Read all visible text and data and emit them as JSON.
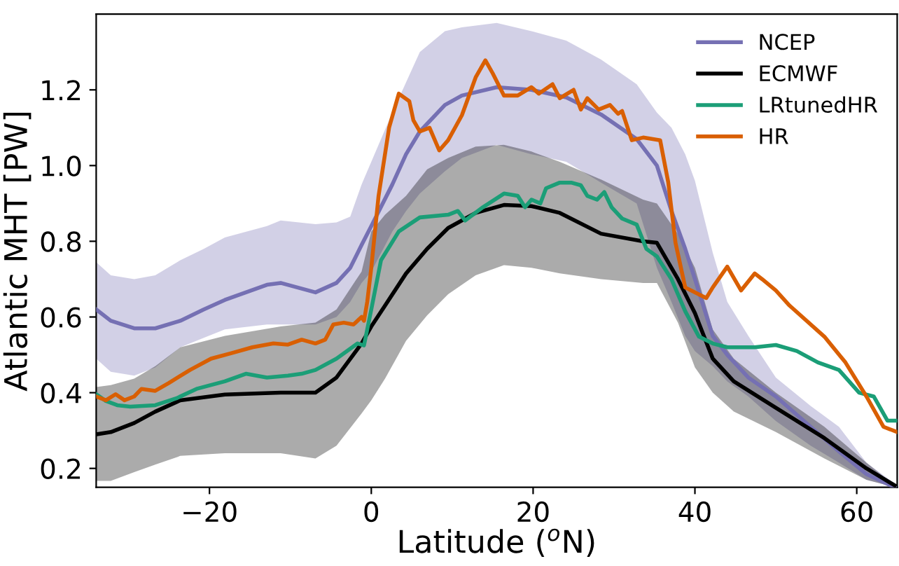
{
  "chart_data": {
    "type": "line",
    "xlabel": "Latitude ($^{o}$N)",
    "ylabel": "Atlantic MHT [PW]",
    "xlim": [
      -34,
      65
    ],
    "ylim": [
      0.15,
      1.4
    ],
    "xticks": [
      {
        "value": -20,
        "label": "−20"
      },
      0,
      20,
      40,
      60
    ],
    "yticks": [
      0.2,
      0.4,
      0.6,
      0.8,
      {
        "value": 1.0,
        "label": "1.0"
      },
      1.2
    ],
    "grid": false,
    "legend": "top right",
    "marker": "none",
    "line_style": "solid",
    "series": [
      {
        "name": "NCEP",
        "color": "#7570b3",
        "x": [
          -34,
          -32.2,
          -29.3,
          -26.7,
          -23.6,
          -20.7,
          -18.1,
          -12.9,
          -11.2,
          -6.9,
          -4.3,
          -2.6,
          -1.2,
          0,
          2.6,
          4.3,
          6,
          9.1,
          11.2,
          15.5,
          19.8,
          24.1,
          28.4,
          32.8,
          35.3,
          37.1,
          38.8,
          40,
          42.2,
          44,
          46.6,
          50,
          54.3,
          57.8,
          61.2,
          64.7
        ],
        "values": [
          0.62,
          0.59,
          0.57,
          0.57,
          0.59,
          0.62,
          0.645,
          0.685,
          0.69,
          0.665,
          0.69,
          0.73,
          0.79,
          0.84,
          0.95,
          1.03,
          1.09,
          1.16,
          1.185,
          1.207,
          1.2,
          1.18,
          1.135,
          1.07,
          1.0,
          0.88,
          0.78,
          0.7,
          0.55,
          0.5,
          0.44,
          0.39,
          0.31,
          0.245,
          0.185,
          0.15
        ],
        "upper": [
          0.745,
          0.71,
          0.7,
          0.71,
          0.75,
          0.78,
          0.81,
          0.84,
          0.855,
          0.845,
          0.85,
          0.865,
          0.95,
          1.01,
          1.14,
          1.22,
          1.3,
          1.355,
          1.365,
          1.377,
          1.355,
          1.33,
          1.28,
          1.215,
          1.14,
          1.1,
          1.03,
          0.96,
          0.77,
          0.64,
          0.55,
          0.44,
          0.365,
          0.31,
          0.215,
          0.16
        ],
        "lower": [
          0.49,
          0.455,
          0.445,
          0.467,
          0.52,
          0.545,
          0.567,
          0.58,
          0.58,
          0.58,
          0.6,
          0.64,
          0.69,
          0.72,
          0.826,
          0.88,
          0.926,
          0.985,
          1.02,
          1.055,
          1.03,
          1.01,
          0.955,
          0.9,
          0.73,
          0.64,
          0.55,
          0.51,
          0.47,
          0.43,
          0.39,
          0.325,
          0.26,
          0.215,
          0.17,
          0.15
        ]
      },
      {
        "name": "ECMWF",
        "color": "#000000",
        "x": [
          -34,
          -32.2,
          -29.3,
          -26.7,
          -23.6,
          -18.1,
          -11.2,
          -6.9,
          -4.3,
          -1.2,
          0,
          1.7,
          4.3,
          6.9,
          9.5,
          12.9,
          16.4,
          19.8,
          23.3,
          28.4,
          33.6,
          35.3,
          37.9,
          40,
          42.2,
          44.8,
          50,
          56,
          61.2,
          64.7
        ],
        "values": [
          0.29,
          0.296,
          0.32,
          0.35,
          0.38,
          0.395,
          0.4,
          0.4,
          0.44,
          0.53,
          0.575,
          0.63,
          0.715,
          0.78,
          0.835,
          0.875,
          0.896,
          0.893,
          0.875,
          0.82,
          0.8,
          0.796,
          0.7,
          0.61,
          0.49,
          0.43,
          0.36,
          0.28,
          0.2,
          0.155
        ],
        "upper": [
          0.415,
          0.42,
          0.437,
          0.47,
          0.52,
          0.55,
          0.575,
          0.585,
          0.62,
          0.72,
          0.826,
          0.87,
          0.92,
          0.99,
          1.02,
          1.05,
          1.055,
          1.037,
          1.01,
          0.963,
          0.91,
          0.9,
          0.82,
          0.73,
          0.567,
          0.49,
          0.4,
          0.31,
          0.215,
          0.155
        ],
        "lower": [
          0.167,
          0.167,
          0.19,
          0.21,
          0.233,
          0.24,
          0.24,
          0.226,
          0.26,
          0.345,
          0.38,
          0.437,
          0.537,
          0.604,
          0.66,
          0.71,
          0.737,
          0.73,
          0.715,
          0.7,
          0.69,
          0.69,
          0.585,
          0.467,
          0.4,
          0.35,
          0.296,
          0.226,
          0.17,
          0.15
        ]
      },
      {
        "name": "LRtunedHR",
        "color": "#1b9e77",
        "x": [
          -34,
          -32.8,
          -31.4,
          -29.8,
          -26.7,
          -24.1,
          -21.6,
          -18.1,
          -15.5,
          -12.9,
          -10.3,
          -8.6,
          -6.9,
          -4.3,
          -1.7,
          -0.9,
          0,
          1.2,
          3.4,
          6,
          9.5,
          10.7,
          11.6,
          13.8,
          16.4,
          18.1,
          19,
          19.8,
          20.9,
          21.6,
          23.3,
          24.7,
          25.9,
          26.7,
          27.9,
          28.8,
          29.7,
          31,
          32.8,
          34,
          35.3,
          37.1,
          38.8,
          40.5,
          42.2,
          44,
          47.4,
          50,
          52.6,
          55.2,
          57.8,
          60.3,
          62.1,
          63.8,
          65
        ],
        "values": [
          0.396,
          0.378,
          0.367,
          0.363,
          0.367,
          0.385,
          0.41,
          0.43,
          0.45,
          0.44,
          0.445,
          0.45,
          0.46,
          0.49,
          0.53,
          0.525,
          0.62,
          0.75,
          0.826,
          0.863,
          0.87,
          0.88,
          0.855,
          0.89,
          0.926,
          0.92,
          0.89,
          0.91,
          0.9,
          0.94,
          0.955,
          0.955,
          0.948,
          0.92,
          0.91,
          0.93,
          0.89,
          0.86,
          0.844,
          0.78,
          0.76,
          0.7,
          0.615,
          0.548,
          0.53,
          0.52,
          0.52,
          0.526,
          0.51,
          0.48,
          0.46,
          0.4,
          0.39,
          0.326,
          0.326
        ]
      },
      {
        "name": "HR",
        "color": "#d95f02",
        "x": [
          -34,
          -32.8,
          -31.6,
          -30.5,
          -29.3,
          -28.4,
          -26.7,
          -25,
          -22.4,
          -19.8,
          -17.2,
          -14.7,
          -12.1,
          -10.3,
          -8.6,
          -6.9,
          -5.7,
          -4.7,
          -3.4,
          -2.2,
          -1.2,
          -0.9,
          -0.5,
          0,
          0.9,
          2.2,
          3.4,
          4.7,
          5.2,
          6,
          7.2,
          8.4,
          9.5,
          11.2,
          12.9,
          14.1,
          15,
          16.4,
          18.1,
          19.8,
          20.7,
          22.4,
          23.3,
          25,
          25.9,
          26.7,
          28.1,
          29.5,
          30.5,
          31,
          32.2,
          33.6,
          35.7,
          36.7,
          37.6,
          38.8,
          41.4,
          42.2,
          44,
          45.7,
          47.4,
          48.3,
          50,
          51.7,
          56,
          58.6,
          61.2,
          63.3,
          65
        ],
        "values": [
          0.39,
          0.38,
          0.396,
          0.38,
          0.39,
          0.41,
          0.405,
          0.426,
          0.46,
          0.49,
          0.505,
          0.52,
          0.53,
          0.527,
          0.54,
          0.53,
          0.54,
          0.58,
          0.585,
          0.58,
          0.6,
          0.59,
          0.64,
          0.73,
          0.92,
          1.1,
          1.19,
          1.17,
          1.12,
          1.09,
          1.1,
          1.04,
          1.067,
          1.133,
          1.233,
          1.278,
          1.244,
          1.185,
          1.185,
          1.207,
          1.19,
          1.215,
          1.178,
          1.2,
          1.148,
          1.178,
          1.148,
          1.16,
          1.137,
          1.144,
          1.067,
          1.074,
          1.067,
          0.956,
          0.796,
          0.678,
          0.65,
          0.678,
          0.733,
          0.67,
          0.715,
          0.7,
          0.67,
          0.63,
          0.548,
          0.48,
          0.39,
          0.31,
          0.296
        ]
      }
    ]
  }
}
